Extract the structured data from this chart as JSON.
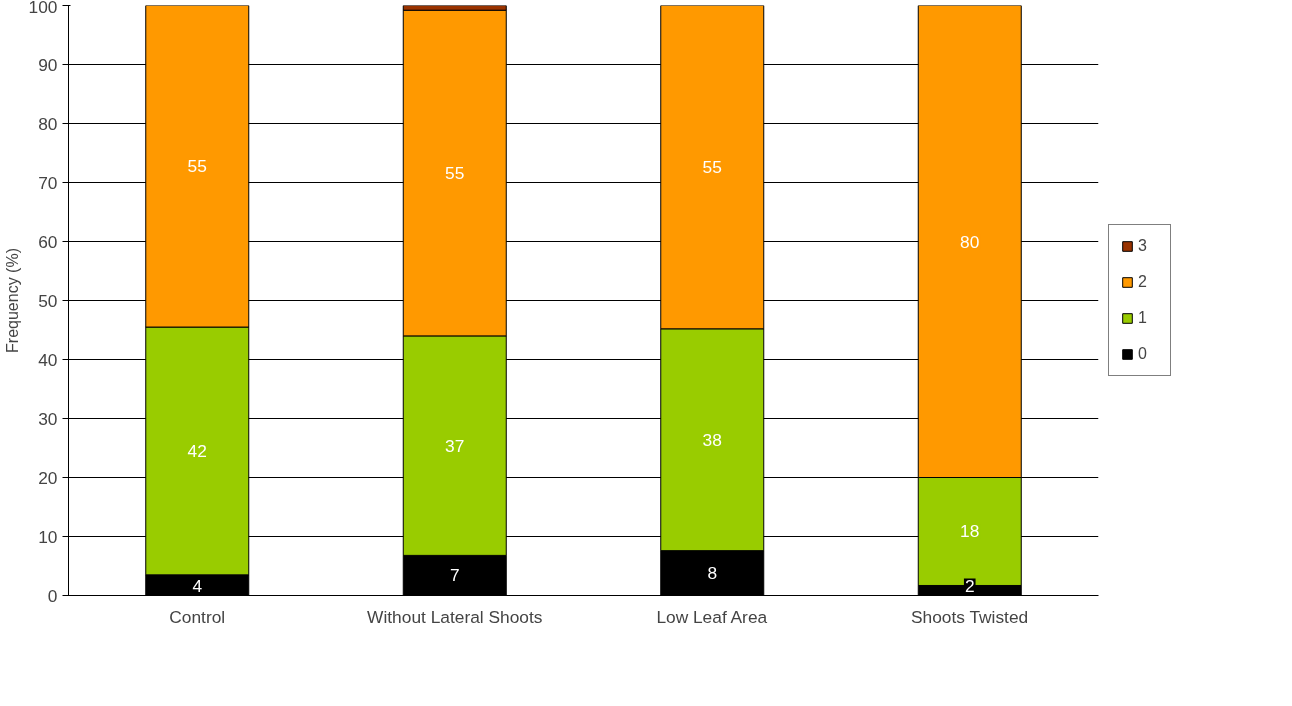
{
  "chart_data": {
    "type": "bar",
    "stacked": true,
    "ylabel": "Frequency (%)",
    "categories": [
      "Control",
      "Without Lateral Shoots",
      "Low Leaf Area",
      "Shoots Twisted"
    ],
    "series": [
      {
        "name": "0",
        "color": "#000000",
        "values": [
          3.5,
          6.8,
          7.6,
          1.7
        ],
        "value_labels": [
          "4",
          "7",
          "8",
          "2"
        ]
      },
      {
        "name": "1",
        "color": "#99cc00",
        "values": [
          42,
          37.2,
          37.6,
          18.3
        ],
        "value_labels": [
          "42",
          "37",
          "38",
          "18"
        ]
      },
      {
        "name": "2",
        "color": "#ff9900",
        "values": [
          54.5,
          55.2,
          54.8,
          80
        ],
        "value_labels": [
          "55",
          "55",
          "55",
          "80"
        ]
      },
      {
        "name": "3",
        "color": "#993300",
        "values": [
          null,
          0.8,
          null,
          null
        ]
      }
    ],
    "ylim": [
      0,
      100
    ],
    "yticks": [
      0,
      10,
      20,
      30,
      40,
      50,
      60,
      70,
      80,
      90,
      100
    ],
    "grid": "y",
    "legend": "right"
  }
}
